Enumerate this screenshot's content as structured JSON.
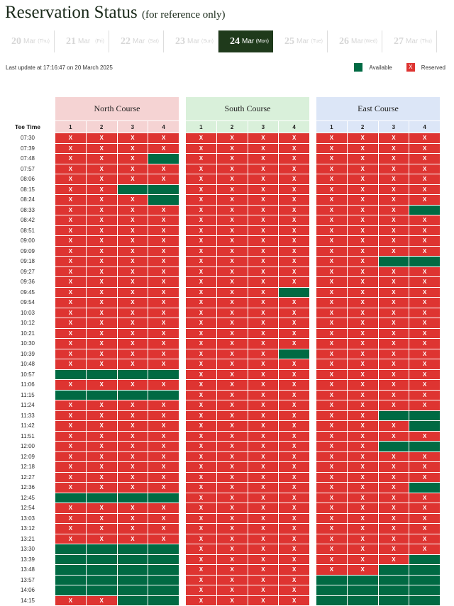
{
  "header": {
    "title": "Reservation Status",
    "subtitle": "(for reference only)"
  },
  "dates": [
    {
      "day": "20",
      "month": "Mar",
      "weekday": "(Thu)",
      "active": false
    },
    {
      "day": "21",
      "month": "Mar",
      "weekday": "(Fri)",
      "active": false
    },
    {
      "day": "22",
      "month": "Mar",
      "weekday": "(Sat)",
      "active": false
    },
    {
      "day": "23",
      "month": "Mar",
      "weekday": "(Sun)",
      "active": false
    },
    {
      "day": "24",
      "month": "Mar",
      "weekday": "(Mon)",
      "active": true
    },
    {
      "day": "25",
      "month": "Mar",
      "weekday": "(Tue)",
      "active": false
    },
    {
      "day": "26",
      "month": "Mar",
      "weekday": "(Wed)",
      "active": false
    },
    {
      "day": "27",
      "month": "Mar",
      "weekday": "(Thu)",
      "active": false
    }
  ],
  "last_update": "Last update at 17:16:47 on 20 March 2025",
  "legend": {
    "available": "Available",
    "reserved": "Reserved",
    "reserved_mark": "X",
    "available_color": "#006a43",
    "reserved_color": "#de3431"
  },
  "tee_time_label": "Tee Time",
  "courses": [
    {
      "name": "North Course",
      "color": "#f5d3d3",
      "slots": [
        "1",
        "2",
        "3",
        "4"
      ]
    },
    {
      "name": "South Course",
      "color": "#d9f0da",
      "slots": [
        "1",
        "2",
        "3",
        "4"
      ]
    },
    {
      "name": "East Course",
      "color": "#dce6f7",
      "slots": [
        "1",
        "2",
        "3",
        "4"
      ]
    }
  ],
  "status_key": {
    "X": "reserved",
    ".": "available"
  },
  "rows": [
    {
      "time": "07:30",
      "status": [
        "XXXX",
        "XXXX",
        "XXXX"
      ]
    },
    {
      "time": "07:39",
      "status": [
        "XXXX",
        "XXXX",
        "XXXX"
      ]
    },
    {
      "time": "07:48",
      "status": [
        "XXX.",
        "XXXX",
        "XXXX"
      ]
    },
    {
      "time": "07:57",
      "status": [
        "XXXX",
        "XXXX",
        "XXXX"
      ]
    },
    {
      "time": "08:06",
      "status": [
        "XXXX",
        "XXXX",
        "XXXX"
      ]
    },
    {
      "time": "08:15",
      "status": [
        "XX..",
        "XXXX",
        "XXXX"
      ]
    },
    {
      "time": "08:24",
      "status": [
        "XXX.",
        "XXXX",
        "XXXX"
      ]
    },
    {
      "time": "08:33",
      "status": [
        "XXXX",
        "XXXX",
        "XXX."
      ]
    },
    {
      "time": "08:42",
      "status": [
        "XXXX",
        "XXXX",
        "XXXX"
      ]
    },
    {
      "time": "08:51",
      "status": [
        "XXXX",
        "XXXX",
        "XXXX"
      ]
    },
    {
      "time": "09:00",
      "status": [
        "XXXX",
        "XXXX",
        "XXXX"
      ]
    },
    {
      "time": "09:09",
      "status": [
        "XXXX",
        "XXXX",
        "XXXX"
      ]
    },
    {
      "time": "09:18",
      "status": [
        "XXXX",
        "XXXX",
        "XX.."
      ]
    },
    {
      "time": "09:27",
      "status": [
        "XXXX",
        "XXXX",
        "XXXX"
      ]
    },
    {
      "time": "09:36",
      "status": [
        "XXXX",
        "XXXX",
        "XXXX"
      ]
    },
    {
      "time": "09:45",
      "status": [
        "XXXX",
        "XXX.",
        "XXXX"
      ]
    },
    {
      "time": "09:54",
      "status": [
        "XXXX",
        "XXXX",
        "XXXX"
      ]
    },
    {
      "time": "10:03",
      "status": [
        "XXXX",
        "XXXX",
        "XXXX"
      ]
    },
    {
      "time": "10:12",
      "status": [
        "XXXX",
        "XXXX",
        "XXXX"
      ]
    },
    {
      "time": "10:21",
      "status": [
        "XXXX",
        "XXXX",
        "XXXX"
      ]
    },
    {
      "time": "10:30",
      "status": [
        "XXXX",
        "XXXX",
        "XXXX"
      ]
    },
    {
      "time": "10:39",
      "status": [
        "XXXX",
        "XXX.",
        "XXXX"
      ]
    },
    {
      "time": "10:48",
      "status": [
        "XXXX",
        "XXXX",
        "XXXX"
      ]
    },
    {
      "time": "10:57",
      "status": [
        "....",
        "XXXX",
        "XXXX"
      ]
    },
    {
      "time": "11:06",
      "status": [
        "XXXX",
        "XXXX",
        "XXXX"
      ]
    },
    {
      "time": "11:15",
      "status": [
        "....",
        "XXXX",
        "XXXX"
      ]
    },
    {
      "time": "11:24",
      "status": [
        "XXXX",
        "XXXX",
        "XXXX"
      ]
    },
    {
      "time": "11:33",
      "status": [
        "XXXX",
        "XXXX",
        "XX.."
      ]
    },
    {
      "time": "11:42",
      "status": [
        "XXXX",
        "XXXX",
        "XXX."
      ]
    },
    {
      "time": "11:51",
      "status": [
        "XXXX",
        "XXXX",
        "XXXX"
      ]
    },
    {
      "time": "12:00",
      "status": [
        "XXXX",
        "XXXX",
        "XX.."
      ]
    },
    {
      "time": "12:09",
      "status": [
        "XXXX",
        "XXXX",
        "XXXX"
      ]
    },
    {
      "time": "12:18",
      "status": [
        "XXXX",
        "XXXX",
        "XXXX"
      ]
    },
    {
      "time": "12:27",
      "status": [
        "XXXX",
        "XXXX",
        "XXXX"
      ]
    },
    {
      "time": "12:36",
      "status": [
        "XXXX",
        "XXXX",
        "XXX."
      ]
    },
    {
      "time": "12:45",
      "status": [
        "....",
        "XXXX",
        "XXXX"
      ]
    },
    {
      "time": "12:54",
      "status": [
        "XXXX",
        "XXXX",
        "XXXX"
      ]
    },
    {
      "time": "13:03",
      "status": [
        "XXXX",
        "XXXX",
        "XXXX"
      ]
    },
    {
      "time": "13:12",
      "status": [
        "XXXX",
        "XXXX",
        "XXXX"
      ]
    },
    {
      "time": "13:21",
      "status": [
        "XXXX",
        "XXXX",
        "XXXX"
      ]
    },
    {
      "time": "13:30",
      "status": [
        "....",
        "XXXX",
        "XXXX"
      ]
    },
    {
      "time": "13:39",
      "status": [
        "....",
        "XXXX",
        "XXX."
      ]
    },
    {
      "time": "13:48",
      "status": [
        "....",
        "XXXX",
        "XX.."
      ]
    },
    {
      "time": "13:57",
      "status": [
        "....",
        "XXXX",
        "...."
      ]
    },
    {
      "time": "14:06",
      "status": [
        "....",
        "XXXX",
        "...."
      ]
    },
    {
      "time": "14:15",
      "status": [
        "XX..",
        "XXXX",
        "...."
      ]
    }
  ]
}
